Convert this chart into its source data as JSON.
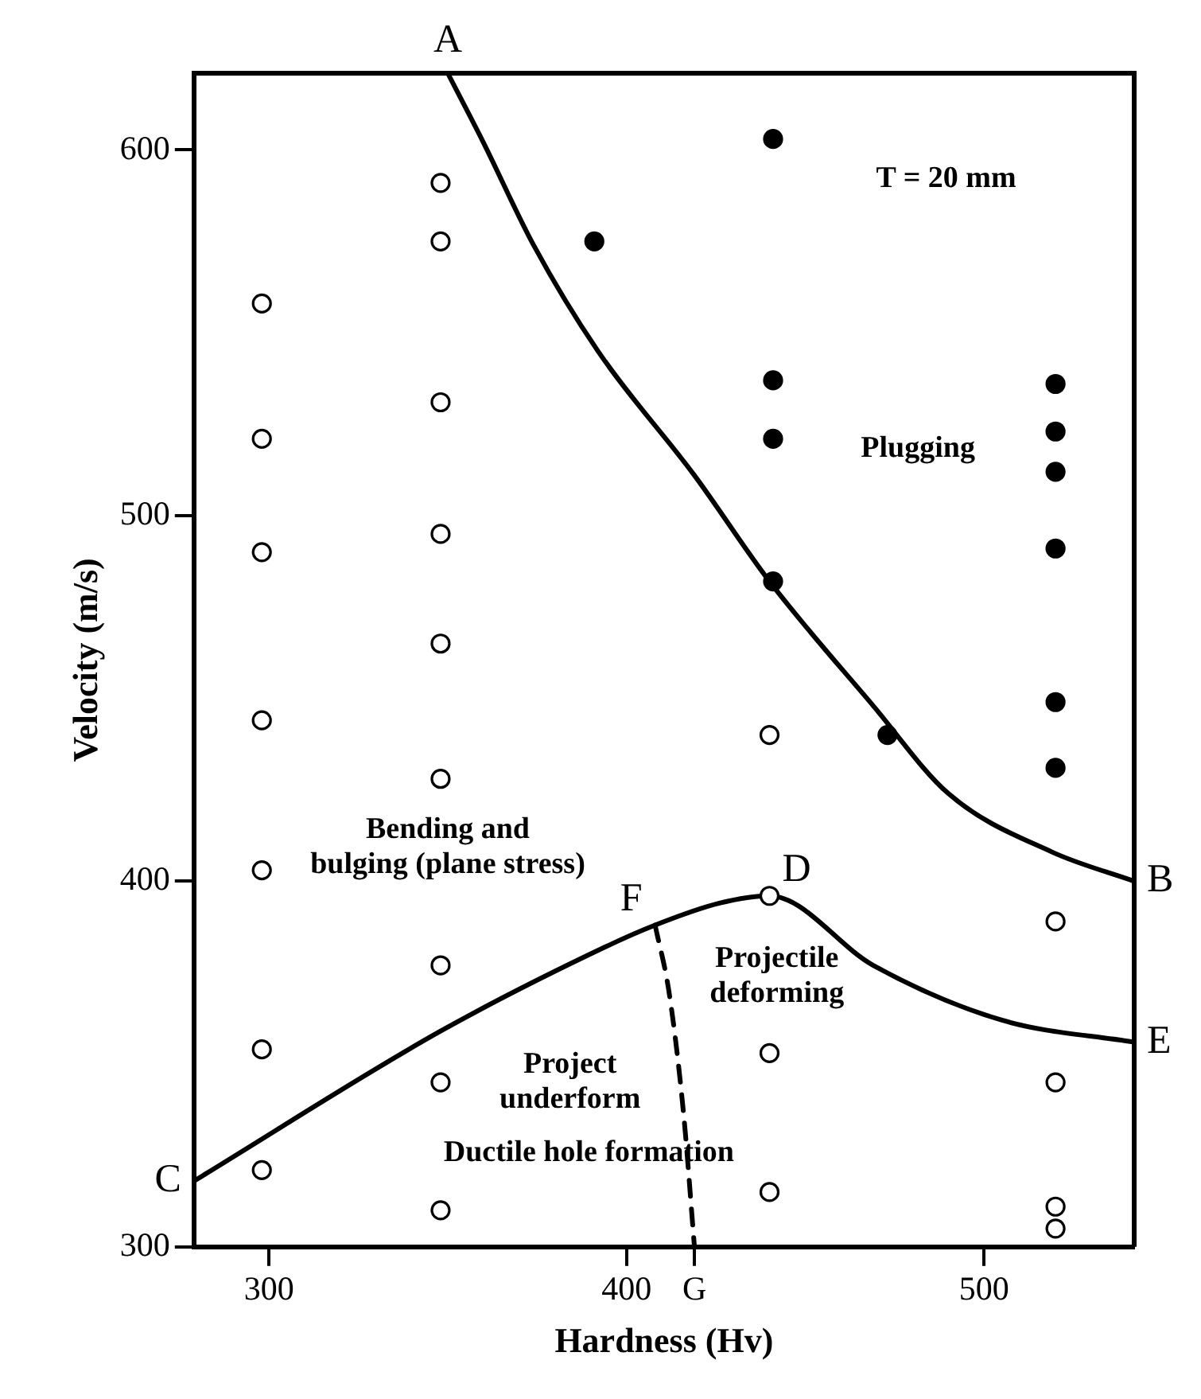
{
  "chart_data": {
    "type": "scatter",
    "xlabel": "Hardness (Hv)",
    "ylabel": "Velocity (m/s)",
    "xlim": [
      279,
      542
    ],
    "ylim": [
      300,
      621
    ],
    "xticks": [
      300,
      400,
      {
        "value": 419,
        "label": "G"
      },
      500
    ],
    "yticks": [
      300,
      400,
      500,
      600
    ],
    "grid": false,
    "legend": false,
    "marker": "circle",
    "series": [
      {
        "color": "#ffffff",
        "x": [
          298,
          298,
          298,
          298,
          298,
          298,
          298,
          348,
          348,
          348,
          348,
          348,
          348,
          348,
          348,
          348,
          440,
          440,
          440,
          440,
          520,
          520,
          520,
          520
        ],
        "values": [
          558,
          521,
          490,
          444,
          403,
          354,
          321,
          591,
          575,
          531,
          495,
          465,
          428,
          377,
          345,
          310,
          440,
          396,
          353,
          315,
          389,
          345,
          311,
          305
        ]
      },
      {
        "color": "#000000",
        "x": [
          391,
          441,
          441,
          441,
          441,
          473,
          520,
          520,
          520,
          520,
          520,
          520
        ],
        "values": [
          575,
          603,
          537,
          521,
          482,
          440,
          536,
          523,
          512,
          491,
          449,
          431
        ]
      },
      {
        "type": "line",
        "color": "#000000",
        "marker": "none",
        "line_style": "solid",
        "x": [
          350,
          360,
          374,
          392,
          419,
          440,
          469,
          490,
          519,
          542
        ],
        "values": [
          621,
          602,
          574,
          545,
          511,
          482,
          448,
          424,
          408,
          400
        ]
      },
      {
        "type": "line",
        "color": "#000000",
        "marker": "none",
        "line_style": "solid",
        "x": [
          279,
          348,
          394,
          408,
          426,
          440,
          469,
          505,
          542
        ],
        "values": [
          318,
          359,
          382,
          388,
          394,
          396,
          377,
          362,
          356
        ]
      },
      {
        "type": "line",
        "color": "#000000",
        "marker": "none",
        "line_style": "dashed",
        "x": [
          408,
          412,
          416,
          419
        ],
        "values": [
          388,
          369,
          336,
          300
        ]
      }
    ],
    "annotations": [
      {
        "text": "A",
        "x": 350,
        "y": 621
      },
      {
        "text": "B",
        "x": 542,
        "y": 400
      },
      {
        "text": "C",
        "x": 279,
        "y": 318
      },
      {
        "text": "D",
        "x": 440,
        "y": 396
      },
      {
        "text": "E",
        "x": 542,
        "y": 356
      },
      {
        "text": "F",
        "x": 408,
        "y": 388
      },
      "T = 20 mm",
      "Plugging",
      "Bending and\nbulging (plane stress)",
      "Projectile\ndeforming",
      "Project\nunderform",
      "Ductile hole formation"
    ]
  }
}
